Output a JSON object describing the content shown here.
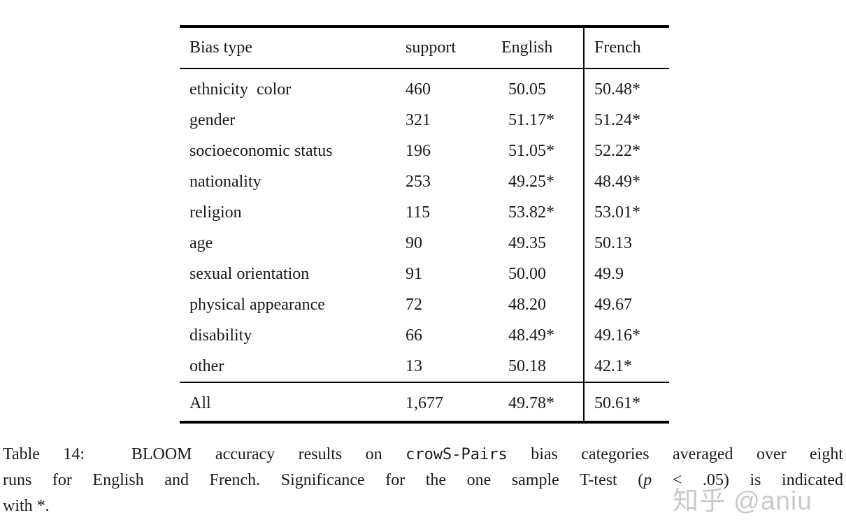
{
  "style": {
    "background": "#ffffff",
    "text_color": "#1a1a1a",
    "rule_color": "#000000",
    "watermark_color": "#9e9e9e"
  },
  "table": {
    "headers": {
      "bias": "Bias type",
      "support": "support",
      "english": "English",
      "french": "French"
    },
    "rows": [
      {
        "bias": "ethnicity  color",
        "support": "460",
        "english": "50.05",
        "french": "50.48*"
      },
      {
        "bias": "gender",
        "support": "321",
        "english": "51.17*",
        "french": "51.24*"
      },
      {
        "bias": "socioeconomic status",
        "support": "196",
        "english": "51.05*",
        "french": "52.22*"
      },
      {
        "bias": "nationality",
        "support": "253",
        "english": "49.25*",
        "french": "48.49*"
      },
      {
        "bias": "religion",
        "support": "115",
        "english": "53.82*",
        "french": "53.01*"
      },
      {
        "bias": "age",
        "support": "90",
        "english": "49.35",
        "french": "50.13"
      },
      {
        "bias": "sexual orientation",
        "support": "91",
        "english": "50.00",
        "french": "49.9"
      },
      {
        "bias": "physical appearance",
        "support": "72",
        "english": "48.20",
        "french": "49.67"
      },
      {
        "bias": "disability",
        "support": "66",
        "english": "48.49*",
        "french": "49.16*"
      },
      {
        "bias": "other",
        "support": "13",
        "english": "50.18",
        "french": "42.1*"
      }
    ],
    "total": {
      "bias": "All",
      "support": "1,677",
      "english": "49.78*",
      "french": "50.61*"
    }
  },
  "caption": {
    "lines": [
      {
        "seg0": "Table 14:  BLOOM accuracy results on ",
        "seg1": "crowS-Pairs",
        "seg2": " bias categories averaged over eight"
      },
      {
        "seg0": "runs for English and French. Significance for the one sample T-test (",
        "seg1": "p",
        "seg2": " < .05) is indicated"
      },
      {
        "seg0": "with *."
      }
    ]
  },
  "watermark": {
    "text": "知乎 @aniu"
  }
}
